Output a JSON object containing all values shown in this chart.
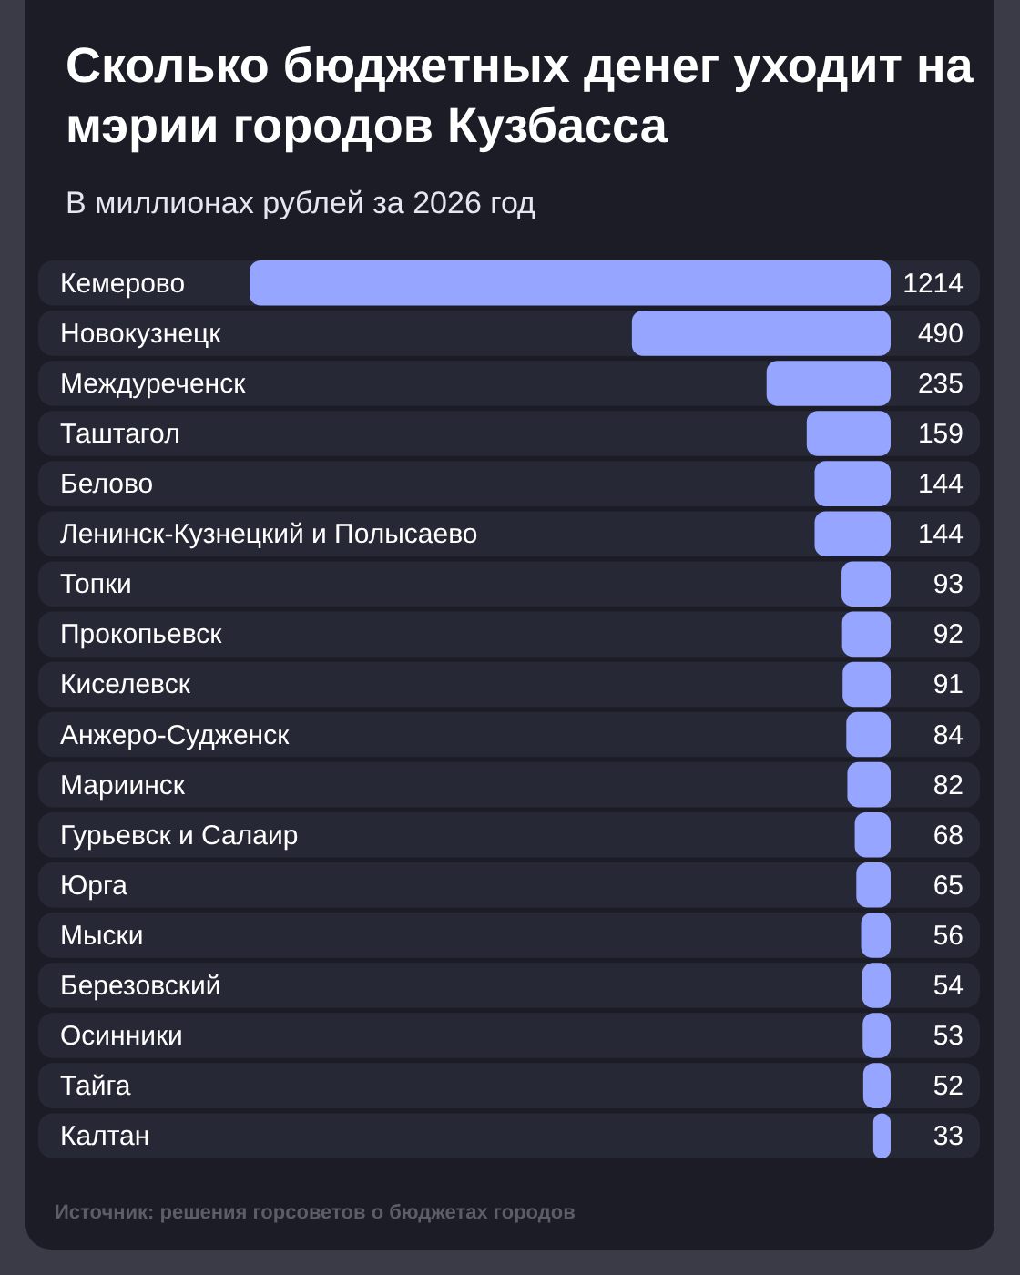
{
  "chart_data": {
    "type": "bar",
    "orientation": "horizontal",
    "title": "Сколько бюджетных денег уходит на мэрии городов Кузбасса",
    "subtitle": "В миллионах рублей за 2026 год",
    "annotations": [
      "Источник: решения горсоветов о бюджетах городов"
    ],
    "categories": [
      "Кемерово",
      "Новокузнецк",
      "Междуреченск",
      "Таштагол",
      "Белово",
      "Ленинск-Кузнецкий и Полысаево",
      "Топки",
      "Прокопьевск",
      "Киселевск",
      "Анжеро-Судженск",
      "Мариинск",
      "Гурьевск и Салаир",
      "Юрга",
      "Мыски",
      "Березовский",
      "Осинники",
      "Тайга",
      "Калтан"
    ],
    "values": [
      1214,
      490,
      235,
      159,
      144,
      144,
      93,
      92,
      91,
      84,
      82,
      68,
      65,
      56,
      54,
      53,
      52,
      33
    ],
    "color": "#96a5ff",
    "data_labels": true
  }
}
